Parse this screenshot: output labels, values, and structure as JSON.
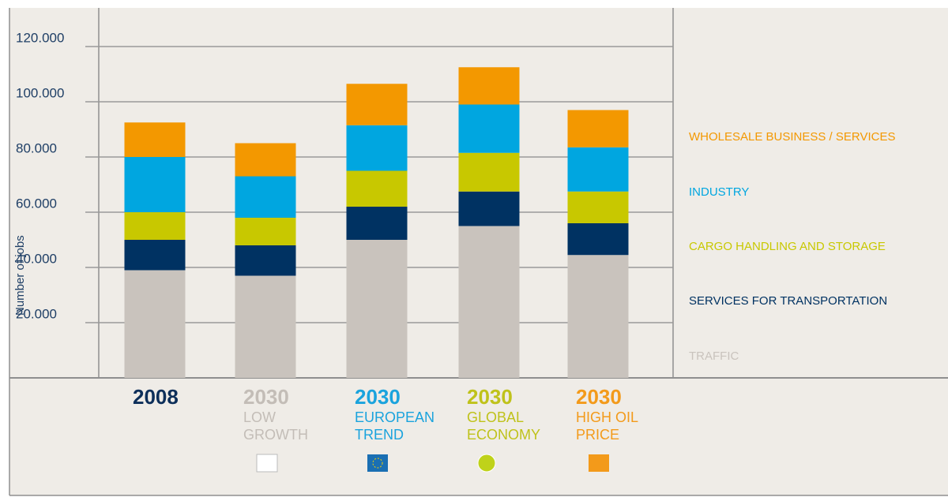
{
  "chart_data": {
    "type": "stacked-bar",
    "y_label": "Number of jobs",
    "categories": [
      "2008",
      "2030",
      "2030",
      "2030",
      "2030"
    ],
    "scenario_lines": [
      [],
      [
        "LOW",
        "GROWTH"
      ],
      [
        "EUROPEAN",
        "TREND"
      ],
      [
        "GLOBAL",
        "ECONOMY"
      ],
      [
        "HIGH OIL",
        "PRICE"
      ]
    ],
    "category_colors": [
      "#0d2f5a",
      "#c3bdb7",
      "#1aa3dd",
      "#bfc21a",
      "#f39a1a"
    ],
    "series": [
      {
        "name": "TRAFFIC",
        "color": "#c9c3bd",
        "values": [
          39000,
          37000,
          50000,
          55000,
          44500
        ]
      },
      {
        "name": "SERVICES FOR TRANSPORTATION",
        "color": "#003262",
        "values": [
          11000,
          11000,
          12000,
          12500,
          11500
        ]
      },
      {
        "name": "CARGO HANDLING AND STORAGE",
        "color": "#c8c800",
        "values": [
          10000,
          10000,
          13000,
          14000,
          11500
        ]
      },
      {
        "name": "INDUSTRY",
        "color": "#00a6e0",
        "values": [
          20000,
          15000,
          16500,
          17500,
          16000
        ]
      },
      {
        "name": "WHOLESALE BUSINESS / SERVICES",
        "color": "#f39800",
        "values": [
          12500,
          12000,
          15000,
          13500,
          13500
        ]
      }
    ],
    "ylim": [
      0,
      134000
    ],
    "yticks": [
      {
        "value": 20000,
        "label": "20.000"
      },
      {
        "value": 40000,
        "label": "40.000"
      },
      {
        "value": 60000,
        "label": "60.000"
      },
      {
        "value": 80000,
        "label": "80.000"
      },
      {
        "value": 100000,
        "label": "100.000"
      },
      {
        "value": 120000,
        "label": "120.000"
      }
    ],
    "grid": true
  }
}
